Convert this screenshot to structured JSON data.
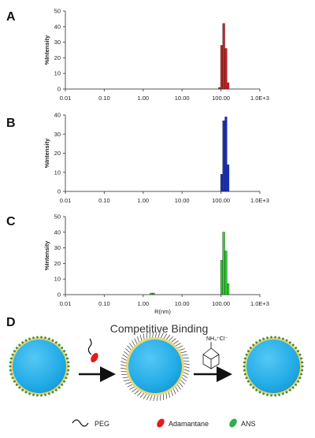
{
  "panel_labels": [
    "A",
    "B",
    "C",
    "D"
  ],
  "chart_data": [
    {
      "type": "bar",
      "panel": "A",
      "x_scale": "log",
      "x_tick_labels": [
        "0.01",
        "0.10",
        "1.00",
        "10.00",
        "100.00",
        "1.0E+3"
      ],
      "x_ticks": [
        0.01,
        0.1,
        1,
        10,
        100,
        1000
      ],
      "xlim": [
        0.01,
        1000
      ],
      "ylabel": "%Intensity",
      "xlabel": "",
      "ylim": [
        0,
        50
      ],
      "y_ticks": [
        0,
        10,
        20,
        30,
        40,
        50
      ],
      "color": "#d21f1f",
      "bars": [
        {
          "x": 92,
          "value": 1
        },
        {
          "x": 104,
          "value": 28
        },
        {
          "x": 118,
          "value": 42
        },
        {
          "x": 134,
          "value": 26
        },
        {
          "x": 152,
          "value": 4
        }
      ]
    },
    {
      "type": "bar",
      "panel": "B",
      "x_scale": "log",
      "x_tick_labels": [
        "0.01",
        "0.10",
        "1.00",
        "10.00",
        "100.00",
        "1.0E+3"
      ],
      "x_ticks": [
        0.01,
        0.1,
        1,
        10,
        100,
        1000
      ],
      "xlim": [
        0.01,
        1000
      ],
      "ylabel": "%Intensity",
      "xlabel": "",
      "ylim": [
        0,
        40
      ],
      "y_ticks": [
        0,
        10,
        20,
        30,
        40
      ],
      "color": "#1630c8",
      "bars": [
        {
          "x": 104,
          "value": 9
        },
        {
          "x": 118,
          "value": 37
        },
        {
          "x": 134,
          "value": 39
        },
        {
          "x": 152,
          "value": 14
        }
      ]
    },
    {
      "type": "bar",
      "panel": "C",
      "x_scale": "log",
      "x_tick_labels": [
        "0.01",
        "0.10",
        "1.00",
        "10.00",
        "100.00",
        "1.0E+3"
      ],
      "x_ticks": [
        0.01,
        0.1,
        1,
        10,
        100,
        1000
      ],
      "xlim": [
        0.01,
        1000
      ],
      "ylabel": "%Intensity",
      "xlabel": "R(nm)",
      "ylim": [
        0,
        50
      ],
      "y_ticks": [
        0,
        10,
        20,
        30,
        40,
        50
      ],
      "color": "#2fcf2f",
      "bars": [
        {
          "x": 1.6,
          "value": 1
        },
        {
          "x": 1.85,
          "value": 1
        },
        {
          "x": 104,
          "value": 22
        },
        {
          "x": 118,
          "value": 40
        },
        {
          "x": 134,
          "value": 28
        },
        {
          "x": 152,
          "value": 7
        }
      ]
    }
  ],
  "diagram": {
    "title": "Competitive Binding",
    "reagent_label": "NH₃⁺Cl⁻",
    "legend": [
      {
        "label": "PEG",
        "icon": "squiggle-line-icon"
      },
      {
        "label": "Adamantane",
        "icon": "red-ellipse-icon",
        "color": "#e41b1b"
      },
      {
        "label": "ANS",
        "icon": "green-ellipse-icon",
        "color": "#2fae4a"
      }
    ],
    "colors": {
      "sphere": "#22aee8",
      "shell": "#e8d777",
      "dots": "#3f8a3c"
    }
  }
}
